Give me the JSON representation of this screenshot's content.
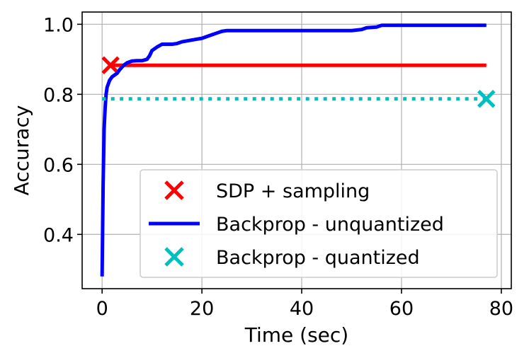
{
  "chart_data": {
    "type": "line",
    "xlabel": "Time (sec)",
    "ylabel": "Accuracy",
    "xlim": [
      -4,
      82
    ],
    "ylim": [
      0.245,
      1.035
    ],
    "xticks": [
      0,
      20,
      40,
      60,
      80
    ],
    "xtick_labels": [
      "0",
      "20",
      "40",
      "60",
      "80"
    ],
    "yticks": [
      0.4,
      0.6,
      0.8,
      1.0
    ],
    "ytick_labels": [
      "0.4",
      "0.6",
      "0.8",
      "1.0"
    ],
    "grid": true,
    "legend_position": "lower-right",
    "colors": {
      "sdp": "#ff0000",
      "unquantized": "#0000ff",
      "quantized": "#00bfbf"
    },
    "series": [
      {
        "name": "SDP + sampling",
        "style": "solid",
        "marker": "x",
        "marker_point": {
          "x": 1.7,
          "y": 0.883
        },
        "x": [
          1.7,
          77
        ],
        "values": [
          0.883,
          0.883
        ]
      },
      {
        "name": "Backprop - unquantized",
        "style": "solid",
        "x": [
          0,
          0.2,
          0.4,
          0.6,
          0.8,
          1.0,
          1.5,
          2.0,
          2.5,
          3.0,
          3.5,
          4.0,
          4.5,
          5.0,
          6.0,
          7.0,
          8.0,
          9.0,
          9.5,
          10.0,
          11.0,
          12.0,
          14.0,
          15.0,
          16.0,
          18.0,
          20.0,
          21.0,
          22.0,
          23.0,
          24.0,
          25.0,
          30.0,
          40.0,
          50.0,
          52.0,
          53.0,
          55.0,
          56.0,
          60.0,
          70.0,
          77.0
        ],
        "values": [
          0.28,
          0.54,
          0.7,
          0.76,
          0.8,
          0.82,
          0.84,
          0.85,
          0.855,
          0.86,
          0.87,
          0.878,
          0.885,
          0.89,
          0.895,
          0.896,
          0.896,
          0.9,
          0.91,
          0.925,
          0.935,
          0.943,
          0.943,
          0.945,
          0.95,
          0.955,
          0.96,
          0.965,
          0.97,
          0.975,
          0.98,
          0.982,
          0.982,
          0.982,
          0.982,
          0.985,
          0.99,
          0.992,
          0.997,
          0.997,
          0.997,
          0.997
        ]
      },
      {
        "name": "Backprop - quantized",
        "style": "dotted",
        "marker": "x",
        "marker_point": {
          "x": 77,
          "y": 0.787
        },
        "x": [
          0,
          77
        ],
        "values": [
          0.787,
          0.787
        ]
      }
    ]
  }
}
